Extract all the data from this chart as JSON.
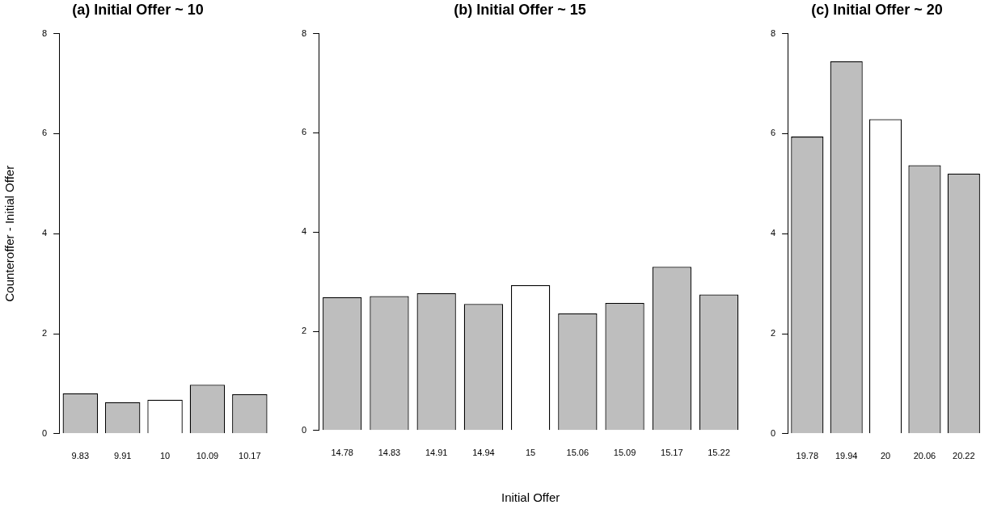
{
  "chart_data": [
    {
      "type": "bar",
      "title": "(a) Initial Offer ~ 10",
      "ylabel": "Counteroffer - Initial Offer",
      "categories": [
        "9.83",
        "9.91",
        "10",
        "10.09",
        "10.17"
      ],
      "values": [
        0.81,
        0.63,
        0.68,
        0.98,
        0.79
      ],
      "colors": [
        "#bebebe",
        "#bebebe",
        "#ffffff",
        "#bebebe",
        "#bebebe"
      ],
      "ylim": [
        0,
        8
      ],
      "yticks": [
        0,
        2,
        4,
        6,
        8
      ],
      "grid": false,
      "legend": false
    },
    {
      "type": "bar",
      "title": "(b) Initial Offer ~ 15",
      "xlabel": "Initial Offer",
      "categories": [
        "14.78",
        "14.83",
        "14.91",
        "14.94",
        "15",
        "15.06",
        "15.09",
        "15.17",
        "15.22"
      ],
      "values": [
        2.69,
        2.71,
        2.77,
        2.55,
        2.93,
        2.36,
        2.57,
        3.3,
        2.74
      ],
      "colors": [
        "#bebebe",
        "#bebebe",
        "#bebebe",
        "#bebebe",
        "#ffffff",
        "#bebebe",
        "#bebebe",
        "#bebebe",
        "#bebebe"
      ],
      "ylim": [
        0,
        8
      ],
      "yticks": [
        0,
        2,
        4,
        6,
        8
      ],
      "grid": false,
      "legend": false
    },
    {
      "type": "bar",
      "title": "(c) Initial Offer ~ 20",
      "categories": [
        "19.78",
        "19.94",
        "20",
        "20.06",
        "20.22"
      ],
      "values": [
        5.94,
        7.45,
        6.29,
        5.37,
        5.2
      ],
      "colors": [
        "#bebebe",
        "#bebebe",
        "#ffffff",
        "#bebebe",
        "#bebebe"
      ],
      "ylim": [
        0,
        8
      ],
      "yticks": [
        0,
        2,
        4,
        6,
        8
      ],
      "grid": false,
      "legend": false
    }
  ]
}
